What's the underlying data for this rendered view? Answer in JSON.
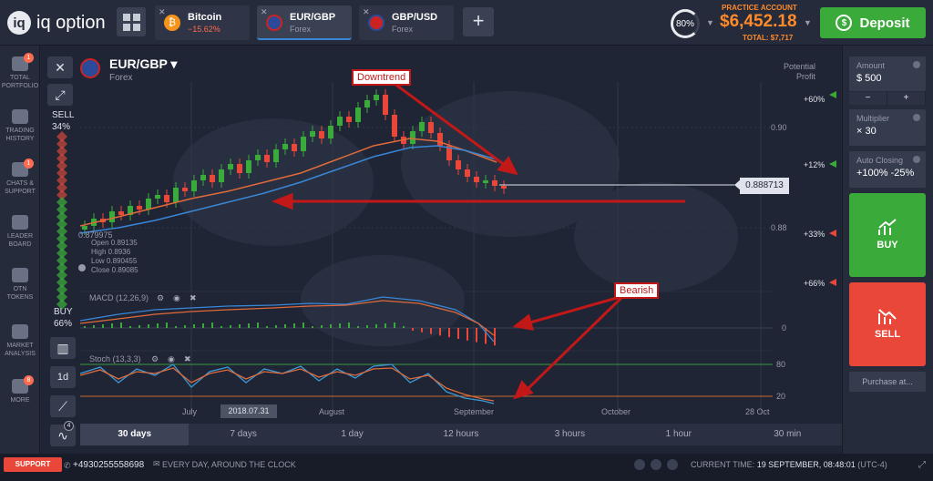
{
  "brand": {
    "name": "iq option",
    "mark": "iq"
  },
  "tabs": [
    {
      "name": "Bitcoin",
      "sub": "−15.62%",
      "sub_negative": true,
      "icon": "bitcoin-icon",
      "color": "#f7931a"
    },
    {
      "name": "EUR/GBP",
      "sub": "Forex",
      "active": true,
      "icon": "eu-gb-flag-icon"
    },
    {
      "name": "GBP/USD",
      "sub": "Forex",
      "icon": "gb-us-flag-icon"
    }
  ],
  "tab_close": "✕",
  "add_tab": "+",
  "header": {
    "pct": "80%",
    "practice": "PRACTICE ACCOUNT",
    "balance": "$6,452.18",
    "total": "TOTAL: $7,717",
    "deposit": "Deposit"
  },
  "leftnav": [
    {
      "label1": "TOTAL",
      "label2": "PORTFOLIO",
      "badge": "1",
      "icon": "portfolio-icon"
    },
    {
      "label1": "TRADING",
      "label2": "HISTORY",
      "icon": "history-icon"
    },
    {
      "label1": "CHATS &",
      "label2": "SUPPORT",
      "badge": "1",
      "icon": "chat-icon"
    },
    {
      "label1": "LEADER",
      "label2": "BOARD",
      "icon": "leaderboard-icon"
    },
    {
      "label1": "OTN",
      "label2": "TOKENS",
      "icon": "token-icon"
    },
    {
      "label1": "MARKET",
      "label2": "ANALYSIS",
      "icon": "analysis-icon"
    },
    {
      "label1": "MORE",
      "label2": "",
      "badge": "8",
      "icon": "more-icon"
    }
  ],
  "toolbar": {
    "close": "✕",
    "expand": "⤢",
    "sell_label": "SELL",
    "sell_pct": "34%",
    "buy_label": "BUY",
    "buy_pct": "66%",
    "tf_label": "1d",
    "badge": "4"
  },
  "pair": {
    "name": "EUR/GBP ▾",
    "sub": "Forex"
  },
  "potential": {
    "label1": "Potential",
    "label2": "Profit"
  },
  "profit_levels": [
    "+60%",
    "+12%",
    "+33%",
    "+66%"
  ],
  "price_levels": [
    "0.90",
    "0.88"
  ],
  "current_price": "0.888713",
  "low_price": "0.879975",
  "ohlc": {
    "open": "Open  0.89135",
    "high": "High  0.8936",
    "low": "Low  0.890455",
    "close": "Close  0.89085"
  },
  "indicators": {
    "macd": "MACD (12,26,9)",
    "macd_zero": "0",
    "stoch": "Stoch (13,3,3)",
    "stoch_80": "80",
    "stoch_20": "20"
  },
  "callouts": {
    "downtrend": "Downtrend",
    "bearish": "Bearish"
  },
  "time_axis": {
    "july": "July",
    "highlight": "2018.07.31",
    "august": "August",
    "september": "September",
    "october": "October",
    "oct28": "28 Oct"
  },
  "periods": [
    "30 days",
    "7 days",
    "1 day",
    "12 hours",
    "3 hours",
    "1 hour",
    "30 min"
  ],
  "right": {
    "amount_label": "Amount",
    "amount_value": "$  500",
    "minus": "−",
    "plus": "+",
    "mult_label": "Multiplier",
    "mult_value": "× 30",
    "auto_label": "Auto Closing",
    "auto_value": "+100%  -25%",
    "buy": "BUY",
    "sell": "SELL",
    "purchase": "Purchase at..."
  },
  "status": {
    "support": "SUPPORT",
    "phone": "+4930255558698",
    "everyday": "EVERY DAY, AROUND THE CLOCK",
    "time_label": "CURRENT TIME:",
    "time_value": "19 SEPTEMBER, 08:48:01",
    "tz": "(UTC-4)"
  },
  "colors": {
    "green": "#3aaa3a",
    "red": "#e8473a",
    "orange": "#ff8a2a",
    "blue": "#3a86d6"
  }
}
